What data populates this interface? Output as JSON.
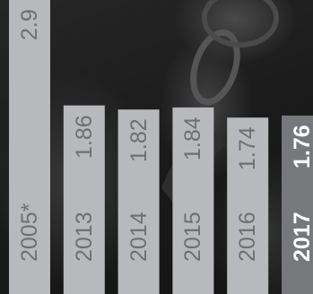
{
  "chart_data": {
    "type": "bar",
    "categories": [
      "2005*",
      "2013",
      "2014",
      "2015",
      "2016",
      "2017"
    ],
    "values": [
      2.9,
      1.86,
      1.82,
      1.84,
      1.74,
      1.76
    ],
    "value_labels": [
      "2.9",
      "1.86",
      "1.82",
      "1.84",
      "1.74",
      "1.76"
    ],
    "highlight_category": "2017",
    "ylim": [
      0,
      2.9
    ],
    "grid": false,
    "legend": "none",
    "orientation": "vertical bars, rotated labels"
  },
  "colors": {
    "bar": "#b8b9bc",
    "bar_highlight": "#77787b",
    "label": "#6e6f73",
    "label_highlight": "#ffffff",
    "background": "#1c1c1c"
  },
  "background_image": "dark photo of a carabiner and climbing harness"
}
